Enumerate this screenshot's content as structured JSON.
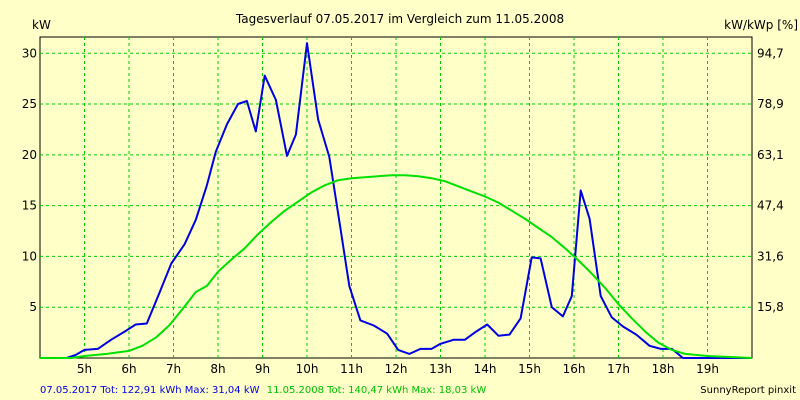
{
  "chart_data": {
    "type": "line",
    "title": "Tagesverlauf 07.05.2017 im Vergleich zum 11.05.2008",
    "ylabel_left": "kW",
    "ylabel_right": "kW/kWp [%]",
    "ylim": [
      0,
      31.6
    ],
    "xlim": [
      4,
      20
    ],
    "grid": true,
    "x_ticks": [
      5,
      6,
      7,
      8,
      9,
      10,
      11,
      12,
      13,
      14,
      15,
      16,
      17,
      18,
      19
    ],
    "x_tick_labels": [
      "5h",
      "6h",
      "7h",
      "8h",
      "9h",
      "10h",
      "11h",
      "12h",
      "13h",
      "14h",
      "15h",
      "16h",
      "17h",
      "18h",
      "19h"
    ],
    "y_ticks_left": [
      5,
      10,
      15,
      20,
      25,
      30
    ],
    "y_ticks_left_labels": [
      "5",
      "10",
      "15",
      "20",
      "25",
      "30"
    ],
    "y_ticks_right_labels": [
      "15,8",
      "31,6",
      "47,4",
      "63,1",
      "78,9",
      "94,7"
    ],
    "series": [
      {
        "color": "#0000e0",
        "points": [
          [
            4.0,
            0
          ],
          [
            4.4,
            0
          ],
          [
            4.6,
            0
          ],
          [
            4.8,
            0.3
          ],
          [
            5.0,
            0.8
          ],
          [
            5.3,
            0.9
          ],
          [
            5.6,
            1.8
          ],
          [
            5.9,
            2.6
          ],
          [
            6.15,
            3.3
          ],
          [
            6.4,
            3.4
          ],
          [
            6.7,
            6.6
          ],
          [
            6.95,
            9.3
          ],
          [
            7.25,
            11.2
          ],
          [
            7.5,
            13.6
          ],
          [
            7.75,
            17.0
          ],
          [
            7.95,
            20.3
          ],
          [
            8.2,
            23.0
          ],
          [
            8.45,
            25.0
          ],
          [
            8.65,
            25.3
          ],
          [
            8.85,
            22.3
          ],
          [
            9.05,
            27.8
          ],
          [
            9.3,
            25.4
          ],
          [
            9.55,
            19.9
          ],
          [
            9.75,
            22.0
          ],
          [
            10.0,
            31.0
          ],
          [
            10.25,
            23.5
          ],
          [
            10.5,
            19.8
          ],
          [
            10.75,
            12.8
          ],
          [
            10.95,
            7.1
          ],
          [
            11.2,
            3.7
          ],
          [
            11.5,
            3.2
          ],
          [
            11.8,
            2.4
          ],
          [
            12.05,
            0.8
          ],
          [
            12.3,
            0.4
          ],
          [
            12.55,
            0.9
          ],
          [
            12.8,
            0.9
          ],
          [
            13.0,
            1.4
          ],
          [
            13.3,
            1.8
          ],
          [
            13.55,
            1.8
          ],
          [
            13.8,
            2.6
          ],
          [
            14.05,
            3.3
          ],
          [
            14.3,
            2.2
          ],
          [
            14.55,
            2.3
          ],
          [
            14.8,
            3.9
          ],
          [
            15.05,
            9.9
          ],
          [
            15.25,
            9.8
          ],
          [
            15.5,
            5.0
          ],
          [
            15.75,
            4.1
          ],
          [
            15.95,
            6.1
          ],
          [
            16.15,
            16.5
          ],
          [
            16.35,
            13.7
          ],
          [
            16.6,
            6.1
          ],
          [
            16.85,
            4.0
          ],
          [
            17.1,
            3.1
          ],
          [
            17.4,
            2.3
          ],
          [
            17.7,
            1.2
          ],
          [
            17.95,
            0.9
          ],
          [
            18.2,
            0.9
          ],
          [
            18.45,
            0
          ],
          [
            19.0,
            0
          ],
          [
            20.0,
            0
          ]
        ]
      },
      {
        "color": "#00e000",
        "points": [
          [
            4.0,
            0
          ],
          [
            4.4,
            0
          ],
          [
            4.7,
            0
          ],
          [
            5.0,
            0.2
          ],
          [
            5.5,
            0.4
          ],
          [
            6.0,
            0.7
          ],
          [
            6.3,
            1.2
          ],
          [
            6.6,
            2.0
          ],
          [
            6.9,
            3.2
          ],
          [
            7.2,
            4.8
          ],
          [
            7.5,
            6.5
          ],
          [
            7.75,
            7.1
          ],
          [
            8.0,
            8.5
          ],
          [
            8.3,
            9.7
          ],
          [
            8.6,
            10.8
          ],
          [
            8.9,
            12.2
          ],
          [
            9.2,
            13.4
          ],
          [
            9.5,
            14.5
          ],
          [
            9.8,
            15.4
          ],
          [
            10.1,
            16.3
          ],
          [
            10.4,
            17.0
          ],
          [
            10.7,
            17.5
          ],
          [
            11.0,
            17.7
          ],
          [
            11.3,
            17.8
          ],
          [
            11.6,
            17.9
          ],
          [
            11.9,
            18.0
          ],
          [
            12.2,
            18.0
          ],
          [
            12.5,
            17.9
          ],
          [
            12.8,
            17.7
          ],
          [
            13.1,
            17.4
          ],
          [
            13.4,
            16.9
          ],
          [
            13.7,
            16.4
          ],
          [
            14.0,
            15.9
          ],
          [
            14.3,
            15.3
          ],
          [
            14.6,
            14.5
          ],
          [
            14.9,
            13.7
          ],
          [
            15.2,
            12.8
          ],
          [
            15.5,
            11.9
          ],
          [
            15.8,
            10.8
          ],
          [
            16.1,
            9.6
          ],
          [
            16.4,
            8.3
          ],
          [
            16.7,
            6.9
          ],
          [
            17.0,
            5.3
          ],
          [
            17.3,
            3.9
          ],
          [
            17.6,
            2.6
          ],
          [
            17.9,
            1.5
          ],
          [
            18.2,
            0.8
          ],
          [
            18.5,
            0.4
          ],
          [
            19.0,
            0.2
          ],
          [
            19.5,
            0.1
          ],
          [
            20.0,
            0
          ]
        ]
      }
    ]
  },
  "footer": {
    "blue_text": "07.05.2017 Tot: 122,91 kWh Max: 31,04 kW",
    "green_text": "11.05.2008 Tot: 140,47 kWh Max: 18,03 kW",
    "credit": "SunnyReport pinxit"
  }
}
